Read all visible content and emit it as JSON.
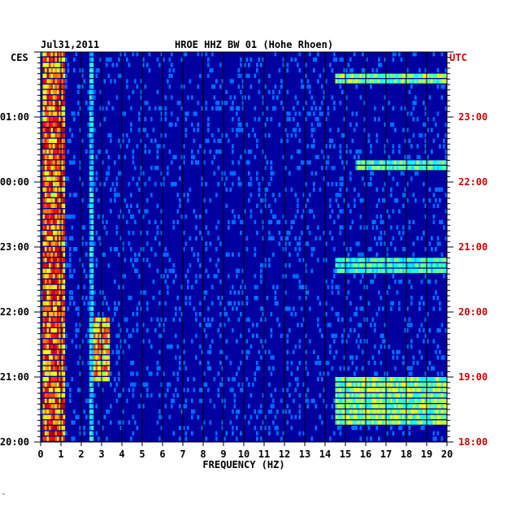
{
  "header": {
    "date": "Jul31,2011",
    "station": "HROE HHZ BW 01 (Hohe Rhoen)",
    "left_zone": "CES",
    "right_zone": "UTC"
  },
  "footer_mark": "ʺ",
  "colors": {
    "background": "#ffffff",
    "plot_background": "#0000a0",
    "grid": "#000000",
    "utc_labels": "#cc0000",
    "local_labels": "#000000"
  },
  "chart_data": {
    "type": "heatmap",
    "title": "HROE HHZ BW 01 (Hohe Rhoen)",
    "date": "Jul31,2011",
    "xlabel": "FREQUENCY (HZ)",
    "xlim": [
      0,
      20
    ],
    "x_ticks": [
      "0",
      "1",
      "2",
      "3",
      "4",
      "5",
      "6",
      "7",
      "8",
      "9",
      "10",
      "11",
      "12",
      "13",
      "14",
      "15",
      "16",
      "17",
      "18",
      "19",
      "20"
    ],
    "y_axis_left": {
      "zone": "CES",
      "labels": [
        {
          "hour_offset": 0,
          "label": "20:00"
        },
        {
          "hour_offset": 1,
          "label": "21:00"
        },
        {
          "hour_offset": 2,
          "label": "22:00"
        },
        {
          "hour_offset": 3,
          "label": "23:00"
        },
        {
          "hour_offset": 4,
          "label": "00:00"
        },
        {
          "hour_offset": 5,
          "label": "01:00"
        }
      ]
    },
    "y_axis_right": {
      "zone": "UTC",
      "labels": [
        {
          "hour_offset": 0,
          "label": "18:00"
        },
        {
          "hour_offset": 1,
          "label": "19:00"
        },
        {
          "hour_offset": 2,
          "label": "20:00"
        },
        {
          "hour_offset": 3,
          "label": "21:00"
        },
        {
          "hour_offset": 4,
          "label": "22:00"
        },
        {
          "hour_offset": 5,
          "label": "23:00"
        }
      ]
    },
    "time_span_hours": 6,
    "rows_per_hour": 12,
    "grid": true,
    "intensity_scale": "blue (low) to red (high)",
    "features": [
      {
        "freq_range": [
          0.1,
          1.2
        ],
        "time_range": [
          0,
          6
        ],
        "intensity": 0.85,
        "note": "persistent low-frequency band"
      },
      {
        "freq_range": [
          2.4,
          2.6
        ],
        "time_range": [
          0,
          6
        ],
        "intensity": 0.4,
        "note": "narrow line"
      },
      {
        "freq_range": [
          2.6,
          3.4
        ],
        "time_range": [
          0.9,
          1.9
        ],
        "intensity": 0.75,
        "note": "bursts"
      },
      {
        "freq_range": [
          14.5,
          20
        ],
        "time_range": [
          0.25,
          1.0
        ],
        "intensity": 0.55,
        "note": "high-frequency noise"
      },
      {
        "freq_range": [
          14.5,
          20
        ],
        "time_range": [
          2.6,
          2.8
        ],
        "intensity": 0.45
      },
      {
        "freq_range": [
          15.5,
          20
        ],
        "time_range": [
          4.2,
          4.3
        ],
        "intensity": 0.5
      },
      {
        "freq_range": [
          14.5,
          20
        ],
        "time_range": [
          5.5,
          5.65
        ],
        "intensity": 0.55
      }
    ]
  }
}
